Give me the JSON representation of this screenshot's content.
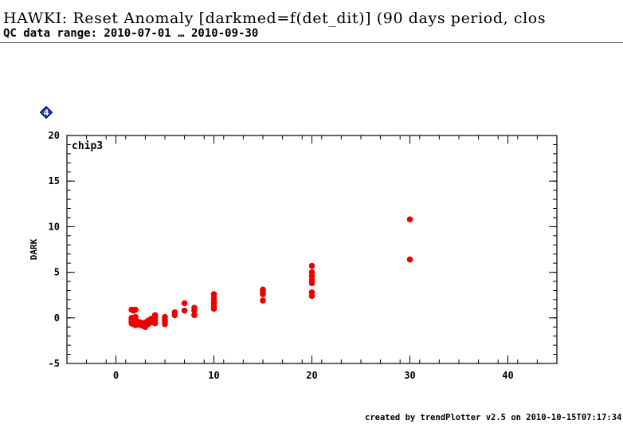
{
  "header": {
    "title": "HAWKI: Reset Anomaly [darkmed=f(det_dit)] (90 days period, clos",
    "subtitle": "QC data range: 2010-07-01 … 2010-09-30"
  },
  "panel": {
    "badge_number": "4",
    "badge_color": "#1f3fe0",
    "label": "chip3"
  },
  "footer": {
    "credit": "created by trendPlotter v2.5 on 2010-10-15T07:17:34"
  },
  "chart_data": {
    "type": "scatter",
    "title": "",
    "xlabel": "",
    "ylabel": "DARK",
    "xlim": [
      -5,
      45
    ],
    "ylim": [
      -5,
      20
    ],
    "x_ticks": [
      0,
      10,
      20,
      30,
      40
    ],
    "y_ticks": [
      -5,
      0,
      5,
      10,
      15,
      20
    ],
    "x_minor_step": 2,
    "y_minor_step": 1,
    "grid": false,
    "legend": "none",
    "marker_color": "#ee0000",
    "series": [
      {
        "points": [
          [
            1.6,
            0.9
          ],
          [
            1.6,
            0.0
          ],
          [
            1.6,
            -0.2
          ],
          [
            1.6,
            -0.4
          ],
          [
            1.6,
            -0.6
          ],
          [
            1.8,
            0.8
          ],
          [
            1.8,
            -0.3
          ],
          [
            1.8,
            -0.7
          ],
          [
            2.0,
            0.9
          ],
          [
            2.0,
            0.1
          ],
          [
            2.0,
            -0.3
          ],
          [
            2.0,
            -0.5
          ],
          [
            2.0,
            -0.8
          ],
          [
            2.2,
            -0.4
          ],
          [
            2.2,
            -0.7
          ],
          [
            2.5,
            -0.5
          ],
          [
            2.5,
            -0.8
          ],
          [
            2.8,
            -0.6
          ],
          [
            2.8,
            -0.9
          ],
          [
            3.0,
            -0.5
          ],
          [
            3.0,
            -1.0
          ],
          [
            3.3,
            -0.3
          ],
          [
            3.3,
            -0.7
          ],
          [
            3.6,
            -0.1
          ],
          [
            3.6,
            -0.5
          ],
          [
            4.0,
            0.3
          ],
          [
            4.0,
            0.0
          ],
          [
            4.0,
            -0.3
          ],
          [
            4.0,
            -0.6
          ],
          [
            5.0,
            0.1
          ],
          [
            5.0,
            -0.2
          ],
          [
            5.0,
            -0.4
          ],
          [
            5.0,
            -0.7
          ],
          [
            6.0,
            0.6
          ],
          [
            6.0,
            0.3
          ],
          [
            7.0,
            1.6
          ],
          [
            7.0,
            0.8
          ],
          [
            8.0,
            1.1
          ],
          [
            8.0,
            0.8
          ],
          [
            8.0,
            0.3
          ],
          [
            10.0,
            2.6
          ],
          [
            10.0,
            2.2
          ],
          [
            10.0,
            1.9
          ],
          [
            10.0,
            1.6
          ],
          [
            10.0,
            1.3
          ],
          [
            10.0,
            1.0
          ],
          [
            15.0,
            3.1
          ],
          [
            15.0,
            2.9
          ],
          [
            15.0,
            2.6
          ],
          [
            15.0,
            1.9
          ],
          [
            20.0,
            5.7
          ],
          [
            20.0,
            5.0
          ],
          [
            20.0,
            4.6
          ],
          [
            20.0,
            4.2
          ],
          [
            20.0,
            3.8
          ],
          [
            20.0,
            2.8
          ],
          [
            20.0,
            2.4
          ],
          [
            30.0,
            10.8
          ],
          [
            30.0,
            6.4
          ]
        ]
      }
    ]
  }
}
